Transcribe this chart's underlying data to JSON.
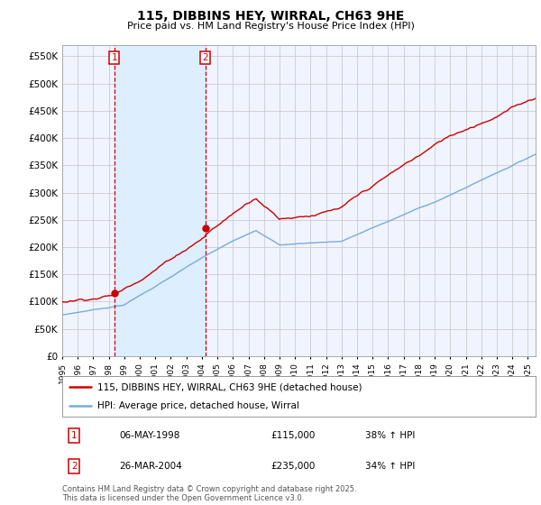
{
  "title": "115, DIBBINS HEY, WIRRAL, CH63 9HE",
  "subtitle": "Price paid vs. HM Land Registry's House Price Index (HPI)",
  "yticks": [
    0,
    50000,
    100000,
    150000,
    200000,
    250000,
    300000,
    350000,
    400000,
    450000,
    500000,
    550000
  ],
  "xlim_start": 1995.0,
  "xlim_end": 2025.5,
  "ylim": [
    0,
    570000
  ],
  "purchases": [
    {
      "label": "1",
      "date": "06-MAY-1998",
      "year": 1998.35,
      "price": 115000,
      "pct": "38%",
      "dir": "↑"
    },
    {
      "label": "2",
      "date": "26-MAR-2004",
      "year": 2004.23,
      "price": 235000,
      "pct": "34%",
      "dir": "↑"
    }
  ],
  "legend_entries": [
    {
      "label": "115, DIBBINS HEY, WIRRAL, CH63 9HE (detached house)",
      "color": "#cc0000",
      "lw": 1.8
    },
    {
      "label": "HPI: Average price, detached house, Wirral",
      "color": "#7aaadd",
      "lw": 1.8
    }
  ],
  "footnote": "Contains HM Land Registry data © Crown copyright and database right 2025.\nThis data is licensed under the Open Government Licence v3.0.",
  "background_color": "#ffffff",
  "grid_color": "#cccccc",
  "purchase_marker_color": "#cc0000",
  "purchase_vline_color": "#cc0000",
  "hpi_line_color": "#7aaadd",
  "price_line_color": "#cc0000",
  "fill_color": "#ddeeff",
  "chart_bg": "#f0f4ff"
}
